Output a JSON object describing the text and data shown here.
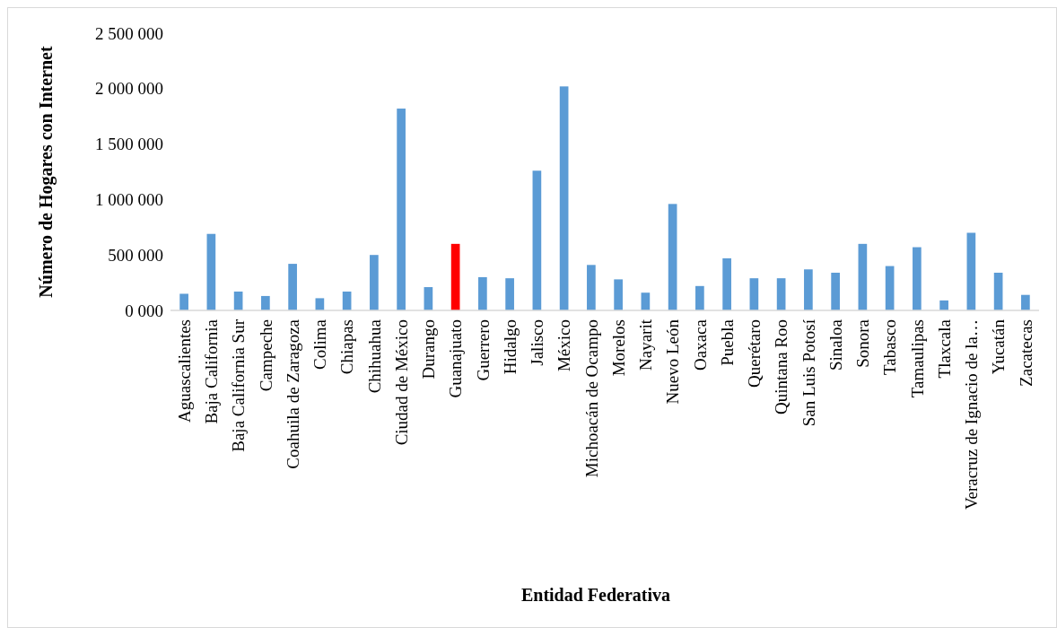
{
  "chart_data": {
    "type": "bar",
    "xlabel": "Entidad Federativa",
    "ylabel": "Número de Hogares con Internet",
    "categories": [
      "Aguascalientes",
      "Baja California",
      "Baja California Sur",
      "Campeche",
      "Coahuila de Zaragoza",
      "Colima",
      "Chiapas",
      "Chihuahua",
      "Ciudad de México",
      "Durango",
      "Guanajuato",
      "Guerrero",
      "Hidalgo",
      "Jalisco",
      "México",
      "Michoacán de Ocampo",
      "Morelos",
      "Nayarit",
      "Nuevo León",
      "Oaxaca",
      "Puebla",
      "Querétaro",
      "Quintana Roo",
      "San Luis Potosí",
      "Sinaloa",
      "Sonora",
      "Tabasco",
      "Tamaulipas",
      "Tlaxcala",
      "Veracruz de Ignacio de la…",
      "Yucatán",
      "Zacatecas"
    ],
    "values": [
      150000,
      690000,
      170000,
      130000,
      420000,
      110000,
      170000,
      500000,
      1820000,
      210000,
      600000,
      300000,
      290000,
      1260000,
      2020000,
      410000,
      280000,
      160000,
      960000,
      220000,
      470000,
      290000,
      290000,
      370000,
      340000,
      600000,
      400000,
      570000,
      90000,
      700000,
      340000,
      140000
    ],
    "colors": [
      "#5b9bd5",
      "#5b9bd5",
      "#5b9bd5",
      "#5b9bd5",
      "#5b9bd5",
      "#5b9bd5",
      "#5b9bd5",
      "#5b9bd5",
      "#5b9bd5",
      "#5b9bd5",
      "#ff0000",
      "#5b9bd5",
      "#5b9bd5",
      "#5b9bd5",
      "#5b9bd5",
      "#5b9bd5",
      "#5b9bd5",
      "#5b9bd5",
      "#5b9bd5",
      "#5b9bd5",
      "#5b9bd5",
      "#5b9bd5",
      "#5b9bd5",
      "#5b9bd5",
      "#5b9bd5",
      "#5b9bd5",
      "#5b9bd5",
      "#5b9bd5",
      "#5b9bd5",
      "#5b9bd5",
      "#5b9bd5",
      "#5b9bd5"
    ],
    "ylim": [
      0,
      2500000
    ],
    "yticks": [
      {
        "value": 0,
        "label": "0 000"
      },
      {
        "value": 500000,
        "label": "500 000"
      },
      {
        "value": 1000000,
        "label": "1 000 000"
      },
      {
        "value": 1500000,
        "label": "1 500 000"
      },
      {
        "value": 2000000,
        "label": "2 000 000"
      },
      {
        "value": 2500000,
        "label": "2 500 000"
      }
    ]
  }
}
